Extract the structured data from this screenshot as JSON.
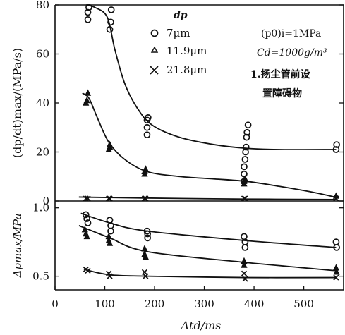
{
  "chart_data": [
    {
      "type": "scatter",
      "ylabel": "(dp/dt)max/(MPa/s)",
      "xlim": [
        0,
        580
      ],
      "ylim": [
        0,
        80
      ],
      "yticks": [
        "0",
        "20",
        "40",
        "60",
        "80"
      ],
      "legend_title": "dp",
      "legend_position": "top-right",
      "annotations": [
        "(p0)i=1MPa",
        "Cd=1000g/m³",
        "1.扬尘管前设",
        "置障碍物"
      ],
      "series": [
        {
          "name": "7μm",
          "marker": "circle",
          "points": [
            [
              66,
              74
            ],
            [
              66,
              77
            ],
            [
              68,
              79
            ],
            [
              110,
              70
            ],
            [
              112,
              73
            ],
            [
              113,
              78
            ],
            [
              185,
              27
            ],
            [
              185,
              30
            ],
            [
              185,
              33
            ],
            [
              187,
              34
            ],
            [
              380,
              8
            ],
            [
              380,
              11
            ],
            [
              380,
              14
            ],
            [
              382,
              17
            ],
            [
              383,
              20
            ],
            [
              384,
              22
            ],
            [
              385,
              26
            ],
            [
              386,
              28
            ],
            [
              388,
              31
            ],
            [
              565,
              21
            ],
            [
              566,
              23
            ]
          ],
          "curve": [
            [
              62,
              80
            ],
            [
              80,
              79
            ],
            [
              105,
              75
            ],
            [
              120,
              62
            ],
            [
              140,
              48
            ],
            [
              165,
              38
            ],
            [
              195,
              31
            ],
            [
              250,
              26
            ],
            [
              320,
              23
            ],
            [
              385,
              21.5
            ],
            [
              450,
              21
            ],
            [
              565,
              21
            ]
          ]
        },
        {
          "name": "11.9μm",
          "marker": "triangle",
          "points": [
            [
              62,
              40
            ],
            [
              64,
              41
            ],
            [
              66,
              44
            ],
            [
              108,
              21
            ],
            [
              110,
              22
            ],
            [
              110,
              23
            ],
            [
              180,
              11
            ],
            [
              180,
              12
            ],
            [
              182,
              13
            ],
            [
              380,
              7
            ],
            [
              380,
              8
            ],
            [
              382,
              9
            ],
            [
              565,
              2
            ]
          ],
          "curve": [
            [
              55,
              44
            ],
            [
              68,
              42
            ],
            [
              85,
              34
            ],
            [
              108,
              24
            ],
            [
              140,
              17
            ],
            [
              185,
              12
            ],
            [
              250,
              10
            ],
            [
              320,
              9
            ],
            [
              385,
              8
            ],
            [
              450,
              6
            ],
            [
              520,
              3.5
            ],
            [
              565,
              1.5
            ]
          ]
        },
        {
          "name": "21.8μm",
          "marker": "cross",
          "points": [
            [
              62,
              1
            ],
            [
              66,
              1
            ],
            [
              108,
              1
            ],
            [
              110,
              1
            ],
            [
              180,
              1
            ],
            [
              182,
              1
            ],
            [
              380,
              1
            ],
            [
              382,
              1
            ],
            [
              565,
              1
            ]
          ],
          "curve": [
            [
              48,
              1.6
            ],
            [
              180,
              1.2
            ],
            [
              380,
              0.8
            ],
            [
              565,
              0.6
            ]
          ]
        }
      ]
    },
    {
      "type": "scatter",
      "xlabel": "Δtd/ms",
      "ylabel": "Δpmax/MPa",
      "xlim": [
        0,
        580
      ],
      "ylim": [
        0.4,
        1.05
      ],
      "xticks": [
        "0",
        "100",
        "200",
        "300",
        "400",
        "500"
      ],
      "yticks": [
        "0.5",
        "1.0"
      ],
      "series": [
        {
          "name": "7μm",
          "marker": "circle",
          "points": [
            [
              62,
              0.95
            ],
            [
              64,
              0.92
            ],
            [
              66,
              0.89
            ],
            [
              110,
              0.91
            ],
            [
              112,
              0.87
            ],
            [
              112,
              0.83
            ],
            [
              185,
              0.83
            ],
            [
              186,
              0.81
            ],
            [
              186,
              0.78
            ],
            [
              380,
              0.79
            ],
            [
              382,
              0.75
            ],
            [
              382,
              0.71
            ],
            [
              565,
              0.75
            ],
            [
              566,
              0.71
            ]
          ],
          "curve": [
            [
              52,
              0.96
            ],
            [
              110,
              0.89
            ],
            [
              185,
              0.83
            ],
            [
              385,
              0.76
            ],
            [
              565,
              0.71
            ]
          ]
        },
        {
          "name": "11.9μm",
          "marker": "triangle",
          "points": [
            [
              60,
              0.84
            ],
            [
              62,
              0.81
            ],
            [
              64,
              0.79
            ],
            [
              108,
              0.79
            ],
            [
              108,
              0.76
            ],
            [
              110,
              0.74
            ],
            [
              180,
              0.7
            ],
            [
              180,
              0.66
            ],
            [
              182,
              0.64
            ],
            [
              380,
              0.61
            ],
            [
              380,
              0.58
            ],
            [
              565,
              0.56
            ],
            [
              566,
              0.53
            ]
          ],
          "curve": [
            [
              48,
              0.87
            ],
            [
              110,
              0.78
            ],
            [
              185,
              0.68
            ],
            [
              385,
              0.6
            ],
            [
              565,
              0.54
            ]
          ]
        },
        {
          "name": "21.8μm",
          "marker": "cross",
          "points": [
            [
              62,
              0.55
            ],
            [
              66,
              0.54
            ],
            [
              108,
              0.52
            ],
            [
              110,
              0.5
            ],
            [
              180,
              0.53
            ],
            [
              182,
              0.5
            ],
            [
              380,
              0.52
            ],
            [
              382,
              0.48
            ],
            [
              565,
              0.49
            ]
          ],
          "curve": [
            [
              58,
              0.55
            ],
            [
              110,
              0.51
            ],
            [
              185,
              0.5
            ],
            [
              385,
              0.49
            ],
            [
              565,
              0.49
            ]
          ]
        }
      ]
    }
  ]
}
